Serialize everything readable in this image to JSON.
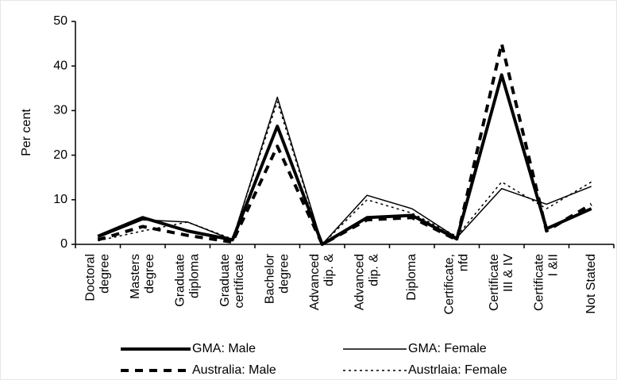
{
  "chart_data": {
    "type": "line",
    "y_label": "Per cent",
    "categories": [
      [
        "Doctoral",
        "degree"
      ],
      [
        "Masters",
        "degree"
      ],
      [
        "Graduate",
        "diploma"
      ],
      [
        "Graduate",
        "certificate"
      ],
      [
        "Bachelor",
        "degree"
      ],
      [
        "Advanced",
        "dip. &"
      ],
      [
        "Advanced",
        "dip. &"
      ],
      [
        "Diploma"
      ],
      [
        "Certificate,",
        "nfd"
      ],
      [
        "Certificate",
        "III & IV"
      ],
      [
        "Certificate",
        "I &II"
      ],
      [
        "Not Stated"
      ]
    ],
    "series": [
      {
        "name": "GMA: Male",
        "color": "#000000",
        "width": 4,
        "dash": "none",
        "values": [
          1.8,
          6,
          3,
          1,
          26.5,
          0,
          6,
          6.5,
          1.2,
          38,
          3.5,
          8
        ]
      },
      {
        "name": "GMA: Female",
        "color": "#000000",
        "width": 1.5,
        "dash": "none",
        "values": [
          1.5,
          5.5,
          5,
          1,
          33,
          0,
          11,
          8,
          1.5,
          12.5,
          9,
          13
        ]
      },
      {
        "name": "Australia: Male",
        "color": "#000000",
        "width": 4,
        "dash": "10 8",
        "values": [
          1,
          4,
          2,
          0.5,
          22,
          0,
          5.5,
          6,
          1,
          45,
          3,
          9
        ]
      },
      {
        "name": "Austrlaia: Female",
        "color": "#000000",
        "width": 1.5,
        "dash": "3 4",
        "values": [
          0.8,
          3,
          5,
          1.2,
          32,
          0,
          10,
          7,
          1.8,
          14,
          8,
          14
        ]
      }
    ],
    "ylim": [
      0,
      50
    ],
    "yticks": [
      0,
      10,
      20,
      30,
      40,
      50
    ],
    "grid": false
  }
}
